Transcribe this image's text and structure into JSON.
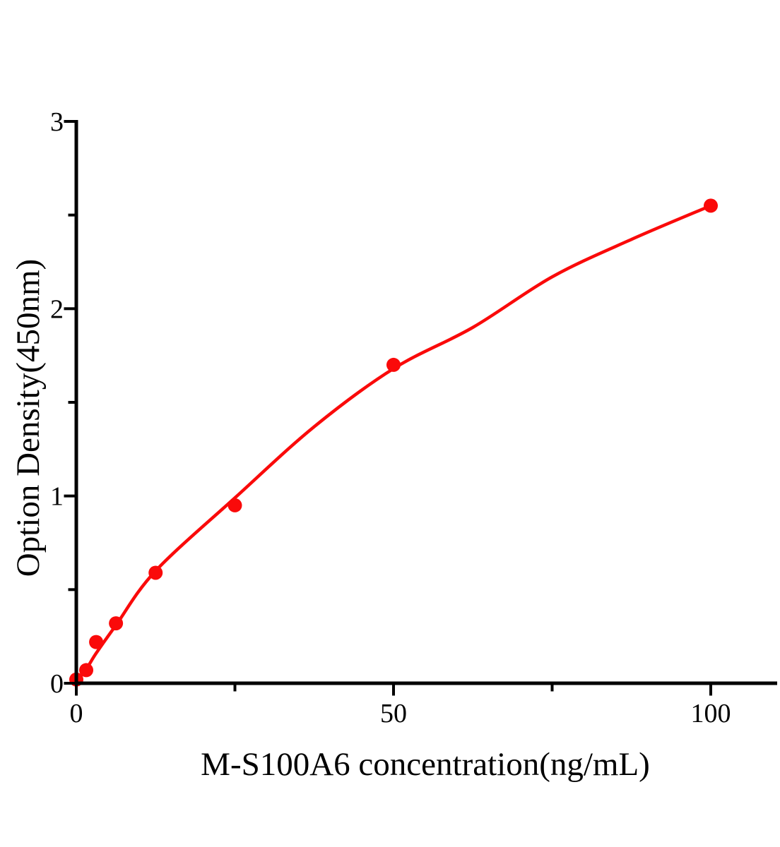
{
  "chart_data": {
    "type": "scatter",
    "title": "",
    "xlabel": "M-S100A6 concentration(ng/mL)",
    "ylabel": "Option Density(450nm)",
    "x": [
      0,
      1.5625,
      3.125,
      6.25,
      12.5,
      25,
      50,
      100
    ],
    "y": [
      0.02,
      0.07,
      0.22,
      0.32,
      0.59,
      0.95,
      1.7,
      2.55
    ],
    "fit_curve": [
      [
        0,
        0.01
      ],
      [
        1.5625,
        0.075
      ],
      [
        3.125,
        0.16
      ],
      [
        6.25,
        0.31
      ],
      [
        12.5,
        0.6
      ],
      [
        25,
        0.99
      ],
      [
        37.5,
        1.37
      ],
      [
        50,
        1.68
      ],
      [
        62.5,
        1.9
      ],
      [
        75,
        2.17
      ],
      [
        87.5,
        2.37
      ],
      [
        100,
        2.55
      ]
    ],
    "xlim": [
      0,
      110.5
    ],
    "ylim": [
      0,
      3
    ],
    "x_major_ticks": [
      0,
      50,
      100
    ],
    "x_tick_labels": [
      "0",
      "50",
      "100"
    ],
    "x_minor_ticks": [
      25,
      75
    ],
    "y_major_ticks": [
      0,
      1,
      2,
      3
    ],
    "y_tick_labels": [
      "0",
      "1",
      "2",
      "3"
    ],
    "y_minor_ticks": [
      0.5,
      1.5,
      2.5
    ],
    "grid": false,
    "legend": "none",
    "marker": "circle",
    "marker_radius_px": 10,
    "point_color": "#fa0a0a",
    "curve_color": "#fa0a0a",
    "axis_color": "#000000",
    "background_color": "#ffffff"
  }
}
